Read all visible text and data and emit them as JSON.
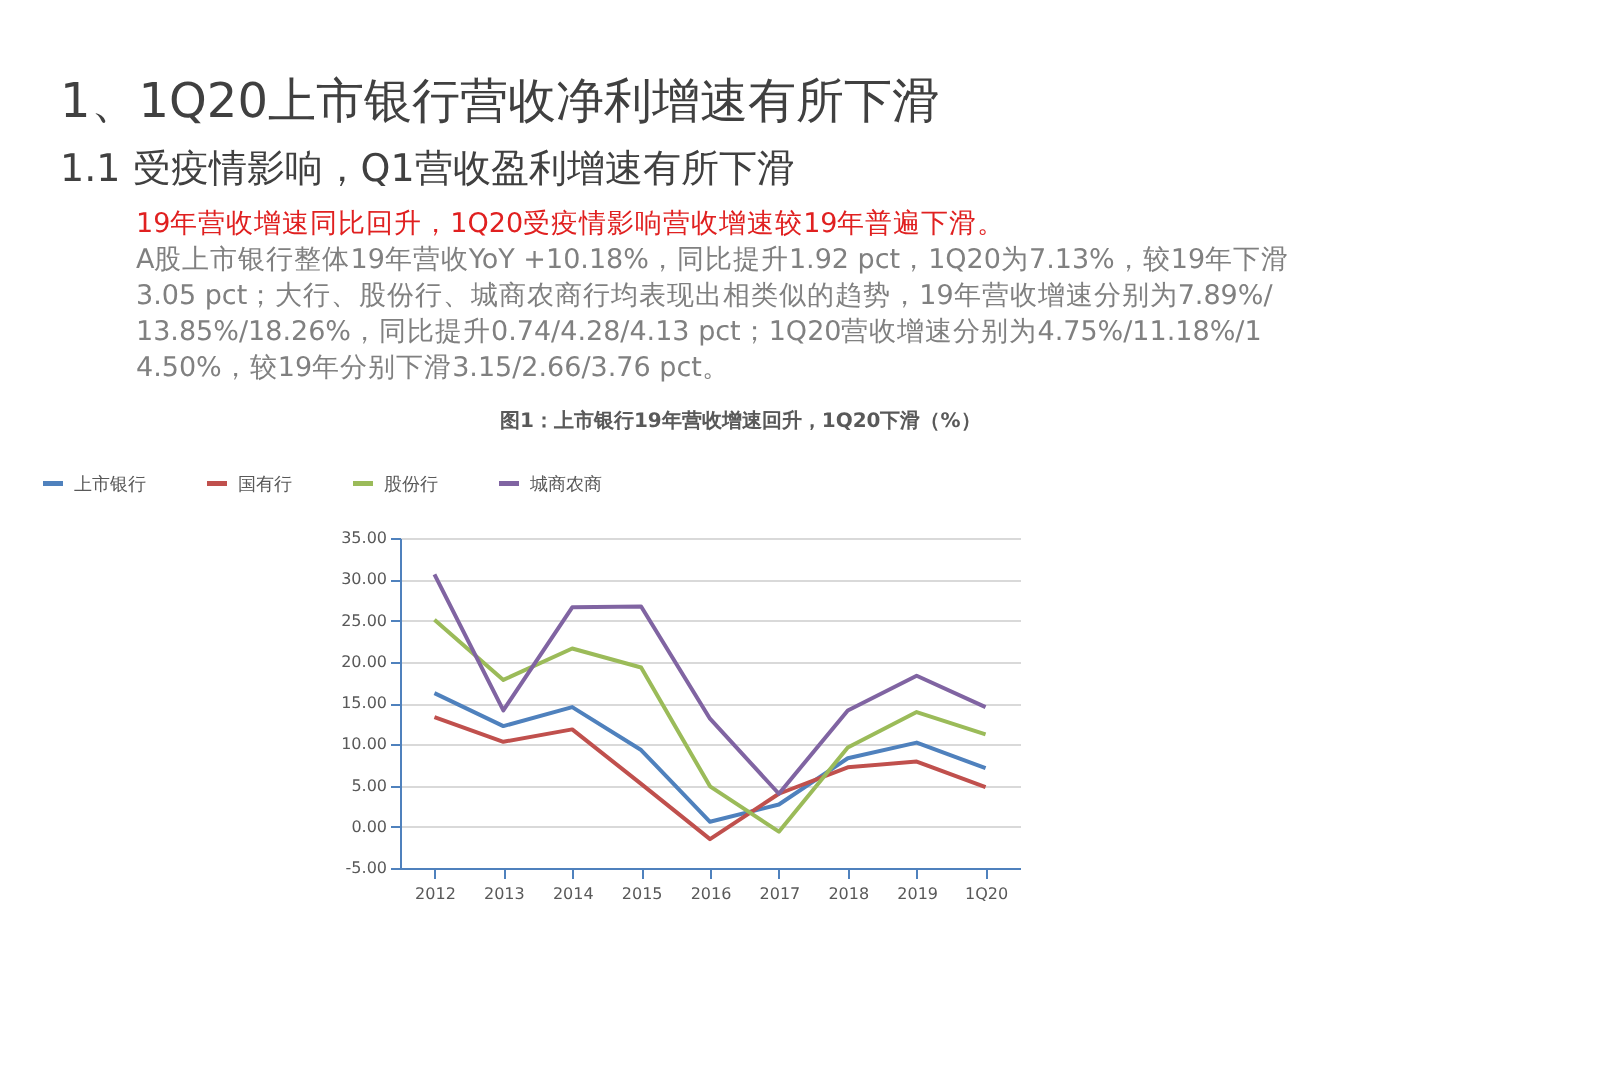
{
  "chart_data": {
    "type": "line",
    "title": "1、1Q20上市银行营收净利增速有所下滑",
    "subtitle": "1.1 受疫情影响，Q1营收盈利增速有所下滑",
    "annotations": [
      "19年营收增速同比回升，1Q20受疫情影响营收增速较19年普遍下滑。",
      "A股上市银行整体19年营收YoY +10.18%，同比提升1.92 pct，1Q20为7.13%，较19年下滑3.05 pct；大行、股份行、城商农商行均表现出相类似的趋势，19年营收增速分别为7.89%/13.85%/18.26%，同比提升0.74/4.28/4.13 pct；1Q20营收增速分别为4.75%/11.18%/14.50%，较19年分别下滑3.15/2.66/3.76 pct。",
      "图1：上市银行19年营收增速回升，1Q20下滑（%）"
    ],
    "categories": [
      "2012",
      "2013",
      "2014",
      "2015",
      "2016",
      "2017",
      "2018",
      "2019",
      "1Q20"
    ],
    "series": [
      {
        "name": "上市银行",
        "color": "#4f81bd",
        "values": [
          16.2,
          12.2,
          14.5,
          9.3,
          0.6,
          2.7,
          8.3,
          10.2,
          7.1
        ]
      },
      {
        "name": "国有行",
        "color": "#c0504d",
        "values": [
          13.3,
          10.3,
          11.8,
          5.2,
          -1.5,
          4.0,
          7.2,
          7.9,
          4.8
        ]
      },
      {
        "name": "股份行",
        "color": "#9bbb59",
        "values": [
          25.1,
          17.8,
          21.6,
          19.3,
          4.9,
          -0.6,
          9.6,
          13.9,
          11.2
        ]
      },
      {
        "name": "城商农商",
        "color": "#8064a2",
        "values": [
          30.6,
          14.1,
          26.6,
          26.7,
          13.1,
          4.0,
          14.1,
          18.3,
          14.5
        ]
      }
    ],
    "ylim": [
      -5,
      35
    ],
    "yticks": [
      {
        "value": -5,
        "label": "-5.00"
      },
      {
        "value": 0,
        "label": "0.00"
      },
      {
        "value": 5,
        "label": "5.00"
      },
      {
        "value": 10,
        "label": "10.00"
      },
      {
        "value": 15,
        "label": "15.00"
      },
      {
        "value": 20,
        "label": "20.00"
      },
      {
        "value": 25,
        "label": "25.00"
      },
      {
        "value": 30,
        "label": "30.00"
      },
      {
        "value": 35,
        "label": "35.00"
      }
    ],
    "grid": "y",
    "legend": "top",
    "marker": "none",
    "line_style": "solid"
  }
}
